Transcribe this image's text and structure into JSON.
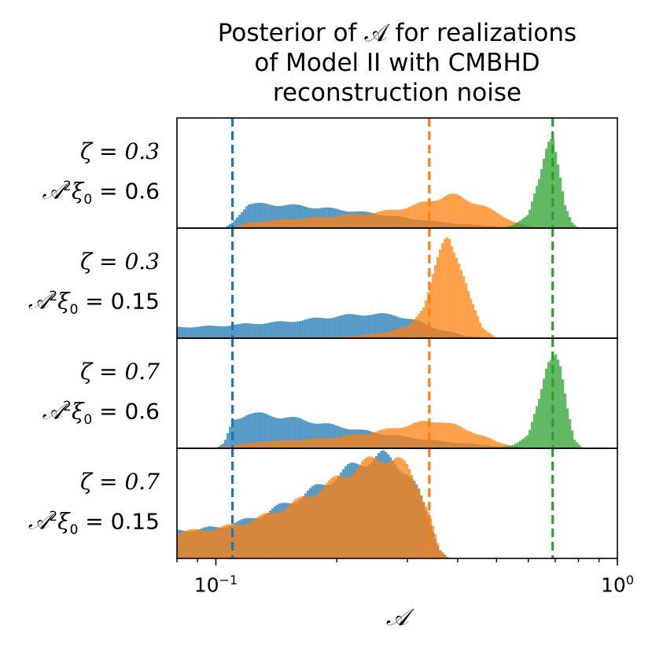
{
  "title_lines": [
    "Posterior of 𝒜 for realizations",
    "of Model II with CMBHD",
    "reconstruction noise"
  ],
  "colors": {
    "blue": "#1f77b4",
    "orange": "#ff7f0e",
    "green": "#2ca02c"
  },
  "chart_data": {
    "type": "histogram",
    "title": "Posterior of 𝒜 for realizations of Model II with CMBHD reconstruction noise",
    "xlabel": "𝒜",
    "xscale": "log",
    "xlim": [
      0.08,
      1.0
    ],
    "xticks": [
      {
        "value": 0.1,
        "base": "10",
        "exp": "−1"
      },
      {
        "value": 1.0,
        "base": "10",
        "exp": "0"
      }
    ],
    "series_names": [
      "blue",
      "orange",
      "green"
    ],
    "panels": [
      {
        "label": {
          "zeta": "ζ = 0.3",
          "amp_lhs": "𝒜",
          "amp_sq": "2",
          "xi": "ξ",
          "xi_sub": "0",
          "amp_rhs": " = 0.6"
        },
        "series": [
          {
            "color": "blue",
            "x": [
              0.105,
              0.11,
              0.12,
              0.15,
              0.2,
              0.25,
              0.3,
              0.35,
              0.4,
              0.5,
              0.6,
              0.7
            ],
            "density": [
              0,
              0.05,
              0.22,
              0.21,
              0.17,
              0.13,
              0.09,
              0.06,
              0.04,
              0.015,
              0.005,
              0
            ]
          },
          {
            "color": "orange",
            "x": [
              0.11,
              0.12,
              0.15,
              0.2,
              0.25,
              0.3,
              0.35,
              0.38,
              0.4,
              0.45,
              0.5,
              0.55,
              0.6,
              0.65
            ],
            "density": [
              0,
              0.05,
              0.08,
              0.11,
              0.14,
              0.19,
              0.26,
              0.3,
              0.29,
              0.22,
              0.14,
              0.06,
              0.015,
              0
            ]
          },
          {
            "color": "green",
            "x": [
              0.52,
              0.55,
              0.6,
              0.64,
              0.67,
              0.69,
              0.71,
              0.74,
              0.77,
              0.8
            ],
            "density": [
              0,
              0.03,
              0.12,
              0.45,
              0.82,
              0.88,
              0.6,
              0.2,
              0.05,
              0
            ]
          }
        ],
        "vlines": [
          {
            "color": "blue",
            "x": 0.11
          },
          {
            "color": "orange",
            "x": 0.34
          },
          {
            "color": "green",
            "x": 0.69
          }
        ]
      },
      {
        "label": {
          "zeta": "ζ = 0.3",
          "amp_lhs": "𝒜",
          "amp_sq": "2",
          "xi": "ξ",
          "xi_sub": "0",
          "amp_rhs": " = 0.15"
        },
        "series": [
          {
            "color": "blue",
            "x": [
              0.08,
              0.1,
              0.12,
              0.15,
              0.2,
              0.24,
              0.28,
              0.32,
              0.36,
              0.42,
              0.5
            ],
            "density": [
              0.1,
              0.11,
              0.13,
              0.15,
              0.2,
              0.22,
              0.21,
              0.15,
              0.08,
              0.02,
              0
            ]
          },
          {
            "color": "orange",
            "x": [
              0.15,
              0.2,
              0.25,
              0.3,
              0.33,
              0.35,
              0.37,
              0.38,
              0.4,
              0.43,
              0.46,
              0.5
            ],
            "density": [
              0,
              0.01,
              0.04,
              0.1,
              0.3,
              0.6,
              0.88,
              0.95,
              0.75,
              0.35,
              0.1,
              0
            ]
          }
        ],
        "vlines": [
          {
            "color": "blue",
            "x": 0.11
          },
          {
            "color": "orange",
            "x": 0.34
          },
          {
            "color": "green",
            "x": 0.69
          }
        ]
      },
      {
        "label": {
          "zeta": "ζ = 0.7",
          "amp_lhs": "𝒜",
          "amp_sq": "2",
          "xi": "ξ",
          "xi_sub": "0",
          "amp_rhs": " = 0.6"
        },
        "series": [
          {
            "color": "blue",
            "x": [
              0.1,
              0.105,
              0.11,
              0.12,
              0.15,
              0.2,
              0.25,
              0.3,
              0.35,
              0.4,
              0.5,
              0.6,
              0.7
            ],
            "density": [
              0,
              0.05,
              0.25,
              0.32,
              0.28,
              0.2,
              0.14,
              0.1,
              0.07,
              0.05,
              0.02,
              0.005,
              0
            ]
          },
          {
            "color": "orange",
            "x": [
              0.1,
              0.11,
              0.13,
              0.15,
              0.2,
              0.25,
              0.3,
              0.33,
              0.36,
              0.4,
              0.45,
              0.5,
              0.55,
              0.6
            ],
            "density": [
              0,
              0.03,
              0.06,
              0.07,
              0.1,
              0.15,
              0.21,
              0.24,
              0.25,
              0.2,
              0.13,
              0.06,
              0.02,
              0
            ]
          },
          {
            "color": "green",
            "x": [
              0.5,
              0.55,
              0.6,
              0.64,
              0.67,
              0.7,
              0.72,
              0.75,
              0.78,
              0.82
            ],
            "density": [
              0,
              0.03,
              0.12,
              0.45,
              0.82,
              0.9,
              0.75,
              0.35,
              0.08,
              0
            ]
          }
        ],
        "vlines": [
          {
            "color": "blue",
            "x": 0.11
          },
          {
            "color": "orange",
            "x": 0.34
          },
          {
            "color": "green",
            "x": 0.69
          }
        ]
      },
      {
        "label": {
          "zeta": "ζ = 0.7",
          "amp_lhs": "𝒜",
          "amp_sq": "2",
          "xi": "ξ",
          "xi_sub": "0",
          "amp_rhs": " = 0.15"
        },
        "series": [
          {
            "color": "blue",
            "x": [
              0.08,
              0.1,
              0.12,
              0.15,
              0.18,
              0.2,
              0.23,
              0.26,
              0.28,
              0.3,
              0.32,
              0.34,
              0.36,
              0.38
            ],
            "density": [
              0.25,
              0.28,
              0.35,
              0.5,
              0.65,
              0.75,
              0.88,
              0.93,
              0.88,
              0.78,
              0.6,
              0.35,
              0.08,
              0
            ]
          },
          {
            "color": "orange",
            "x": [
              0.08,
              0.1,
              0.12,
              0.15,
              0.18,
              0.2,
              0.23,
              0.26,
              0.28,
              0.3,
              0.32,
              0.34,
              0.36,
              0.38
            ],
            "density": [
              0.24,
              0.27,
              0.33,
              0.47,
              0.62,
              0.72,
              0.85,
              0.92,
              0.9,
              0.82,
              0.66,
              0.4,
              0.08,
              0
            ]
          }
        ],
        "vlines": [
          {
            "color": "blue",
            "x": 0.11
          },
          {
            "color": "orange",
            "x": 0.34
          },
          {
            "color": "green",
            "x": 0.69
          }
        ]
      }
    ]
  }
}
